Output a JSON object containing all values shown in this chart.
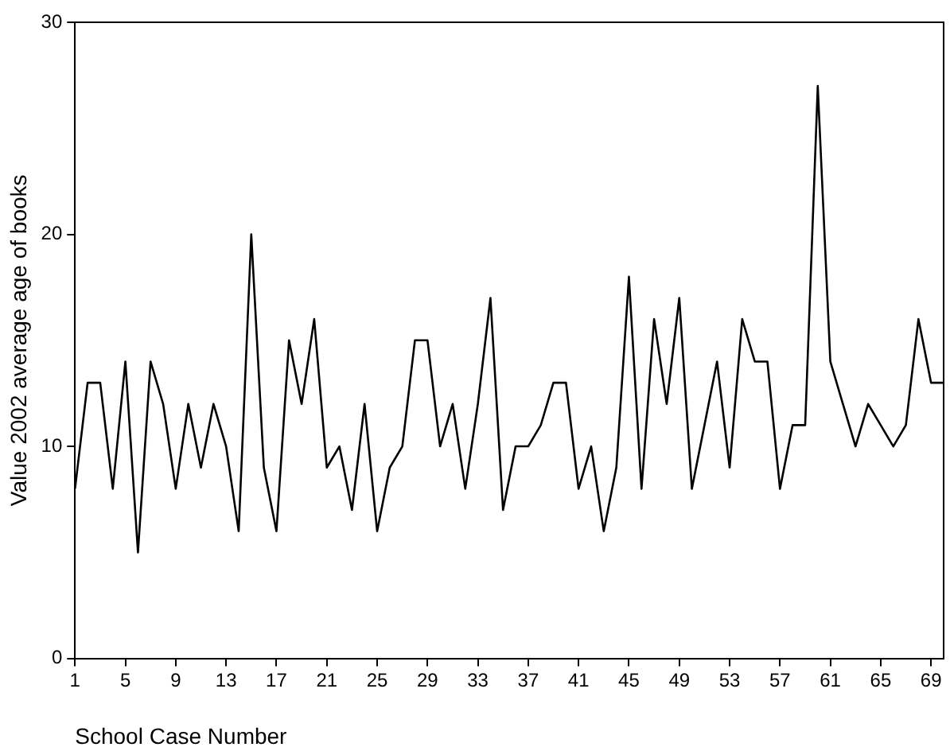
{
  "chart_data": {
    "type": "line",
    "xlabel": "School Case Number",
    "ylabel": "Value 2002 average age of books",
    "x": [
      1,
      2,
      3,
      4,
      5,
      6,
      7,
      8,
      9,
      10,
      11,
      12,
      13,
      14,
      15,
      16,
      17,
      18,
      19,
      20,
      21,
      22,
      23,
      24,
      25,
      26,
      27,
      28,
      29,
      30,
      31,
      32,
      33,
      34,
      35,
      36,
      37,
      38,
      39,
      40,
      41,
      42,
      43,
      44,
      45,
      46,
      47,
      48,
      49,
      50,
      51,
      52,
      53,
      54,
      55,
      56,
      57,
      58,
      59,
      60,
      61,
      62,
      63,
      64,
      65,
      66,
      67,
      68,
      69,
      70
    ],
    "series": [
      {
        "color": "#000000",
        "values": [
          8,
          13,
          13,
          8,
          14,
          5,
          14,
          12,
          8,
          12,
          9,
          12,
          10,
          6,
          20,
          9,
          6,
          15,
          12,
          16,
          9,
          10,
          7,
          12,
          6,
          9,
          10,
          15,
          15,
          10,
          12,
          8,
          12,
          17,
          7,
          10,
          10,
          11,
          13,
          13,
          8,
          10,
          6,
          9,
          18,
          8,
          16,
          12,
          17,
          8,
          11,
          14,
          9,
          16,
          14,
          14,
          8,
          11,
          11,
          27,
          14,
          12,
          10,
          12,
          11,
          10,
          11,
          16,
          13,
          13
        ]
      }
    ],
    "xlim": [
      1,
      70
    ],
    "xticks": [
      1,
      5,
      9,
      13,
      17,
      21,
      25,
      29,
      33,
      37,
      41,
      45,
      49,
      53,
      57,
      61,
      65,
      69
    ],
    "ylim": [
      0,
      30
    ],
    "yticks": [
      0,
      10,
      20,
      30
    ],
    "grid": false,
    "legend": false,
    "marker": "none",
    "line_style": "solid"
  }
}
